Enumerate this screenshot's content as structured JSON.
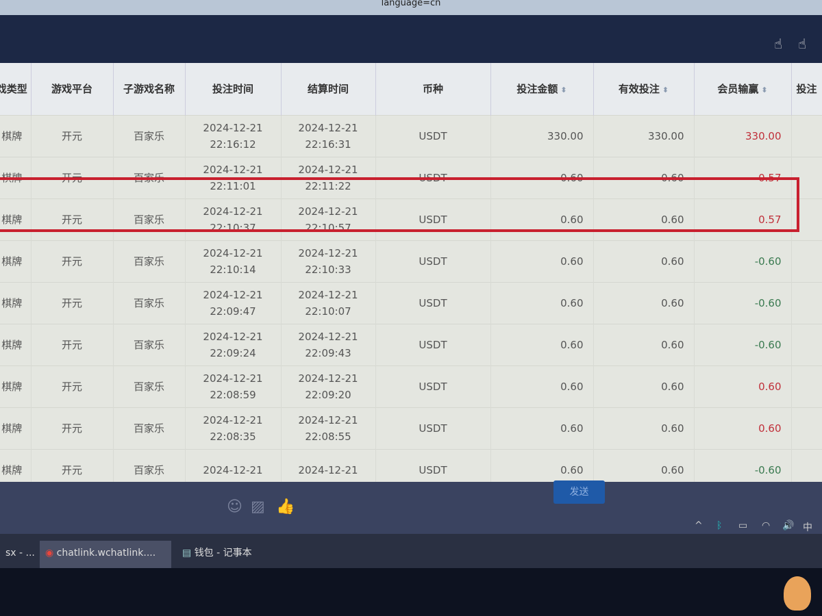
{
  "browser": {
    "url_fragment": "language=cn"
  },
  "table": {
    "headers": [
      "戏类型",
      "游戏平台",
      "子游戏名称",
      "投注时间",
      "结算时间",
      "币种",
      "投注金额",
      "有效投注",
      "会员输赢",
      "投注"
    ],
    "rows": [
      {
        "type": "棋牌",
        "platform": "开元",
        "game": "百家乐",
        "bet_date": "2024-12-21",
        "bet_time": "22:16:12",
        "settle_date": "2024-12-21",
        "settle_time": "22:16:31",
        "currency": "USDT",
        "amount": "330.00",
        "valid": "330.00",
        "winloss": "330.00",
        "sign": "pos"
      },
      {
        "type": "棋牌",
        "platform": "开元",
        "game": "百家乐",
        "bet_date": "2024-12-21",
        "bet_time": "22:11:01",
        "settle_date": "2024-12-21",
        "settle_time": "22:11:22",
        "currency": "USDT",
        "amount": "0.60",
        "valid": "0.60",
        "winloss": "0.57",
        "sign": "pos"
      },
      {
        "type": "棋牌",
        "platform": "开元",
        "game": "百家乐",
        "bet_date": "2024-12-21",
        "bet_time": "22:10:37",
        "settle_date": "2024-12-21",
        "settle_time": "22:10:57",
        "currency": "USDT",
        "amount": "0.60",
        "valid": "0.60",
        "winloss": "0.57",
        "sign": "pos"
      },
      {
        "type": "棋牌",
        "platform": "开元",
        "game": "百家乐",
        "bet_date": "2024-12-21",
        "bet_time": "22:10:14",
        "settle_date": "2024-12-21",
        "settle_time": "22:10:33",
        "currency": "USDT",
        "amount": "0.60",
        "valid": "0.60",
        "winloss": "-0.60",
        "sign": "neg"
      },
      {
        "type": "棋牌",
        "platform": "开元",
        "game": "百家乐",
        "bet_date": "2024-12-21",
        "bet_time": "22:09:47",
        "settle_date": "2024-12-21",
        "settle_time": "22:10:07",
        "currency": "USDT",
        "amount": "0.60",
        "valid": "0.60",
        "winloss": "-0.60",
        "sign": "neg"
      },
      {
        "type": "棋牌",
        "platform": "开元",
        "game": "百家乐",
        "bet_date": "2024-12-21",
        "bet_time": "22:09:24",
        "settle_date": "2024-12-21",
        "settle_time": "22:09:43",
        "currency": "USDT",
        "amount": "0.60",
        "valid": "0.60",
        "winloss": "-0.60",
        "sign": "neg"
      },
      {
        "type": "棋牌",
        "platform": "开元",
        "game": "百家乐",
        "bet_date": "2024-12-21",
        "bet_time": "22:08:59",
        "settle_date": "2024-12-21",
        "settle_time": "22:09:20",
        "currency": "USDT",
        "amount": "0.60",
        "valid": "0.60",
        "winloss": "0.60",
        "sign": "pos"
      },
      {
        "type": "棋牌",
        "platform": "开元",
        "game": "百家乐",
        "bet_date": "2024-12-21",
        "bet_time": "22:08:35",
        "settle_date": "2024-12-21",
        "settle_time": "22:08:55",
        "currency": "USDT",
        "amount": "0.60",
        "valid": "0.60",
        "winloss": "0.60",
        "sign": "pos"
      },
      {
        "type": "棋牌",
        "platform": "开元",
        "game": "百家乐",
        "bet_date": "2024-12-21",
        "bet_time": "",
        "settle_date": "2024-12-21",
        "settle_time": "",
        "currency": "USDT",
        "amount": "0.60",
        "valid": "0.60",
        "winloss": "-0.60",
        "sign": "neg"
      }
    ]
  },
  "chat": {
    "send_label": "发送",
    "icons": [
      "emoji-icon",
      "image-icon",
      "thumbs-up-icon"
    ]
  },
  "taskbar": {
    "items": [
      "sx - ...",
      "chatlink.wchatlink....",
      "钱包 - 记事本"
    ],
    "ime": "中"
  },
  "colors": {
    "highlight": "#c8202f",
    "positive": "#c0303a",
    "negative": "#3a7a50",
    "send": "#1f5aa8"
  }
}
